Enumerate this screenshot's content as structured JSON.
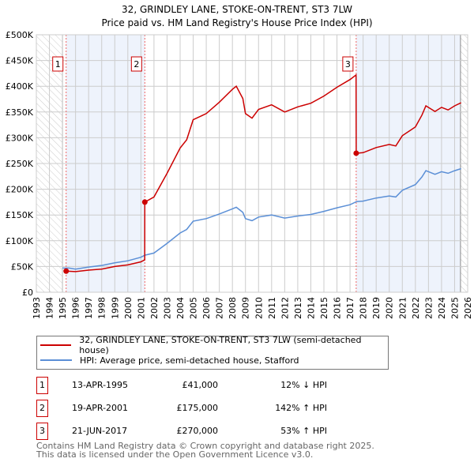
{
  "chart_data": {
    "type": "line",
    "title": "32, GRINDLEY LANE, STOKE-ON-TRENT, ST3 7LW",
    "subtitle": "Price paid vs. HM Land Registry's House Price Index (HPI)",
    "xlim": [
      1993,
      2026
    ],
    "ylim": [
      0,
      500000
    ],
    "x_ticks": [
      "1993",
      "1994",
      "1995",
      "1996",
      "1997",
      "1998",
      "1999",
      "2000",
      "2001",
      "2002",
      "2003",
      "2004",
      "2005",
      "2006",
      "2007",
      "2008",
      "2009",
      "2010",
      "2011",
      "2012",
      "2013",
      "2014",
      "2015",
      "2016",
      "2017",
      "2018",
      "2019",
      "2020",
      "2021",
      "2022",
      "2023",
      "2024",
      "2025",
      "2026"
    ],
    "y_ticks": [
      {
        "v": 0,
        "label": "£0"
      },
      {
        "v": 50000,
        "label": "£50K"
      },
      {
        "v": 100000,
        "label": "£100K"
      },
      {
        "v": 150000,
        "label": "£150K"
      },
      {
        "v": 200000,
        "label": "£200K"
      },
      {
        "v": 250000,
        "label": "£250K"
      },
      {
        "v": 300000,
        "label": "£300K"
      },
      {
        "v": 350000,
        "label": "£350K"
      },
      {
        "v": 400000,
        "label": "£400K"
      },
      {
        "v": 450000,
        "label": "£450K"
      },
      {
        "v": 500000,
        "label": "£500K"
      }
    ],
    "grid": true,
    "legend_position": "below",
    "series": [
      {
        "name": "32, GRINDLEY LANE, STOKE-ON-TRENT, ST3 7LW (semi-detached house)",
        "color": "#cc0000",
        "x": [
          1995.28,
          1996,
          1997,
          1998,
          1999,
          2000,
          2001,
          2001.29,
          2001.3,
          2002,
          2003,
          2004,
          2004.5,
          2005,
          2006,
          2007,
          2008,
          2008.3,
          2008.8,
          2009,
          2009.5,
          2010,
          2011,
          2012,
          2013,
          2014,
          2015,
          2016,
          2017,
          2017.46,
          2017.47,
          2018,
          2019,
          2020,
          2020.5,
          2021,
          2022,
          2022.5,
          2022.8,
          2023.5,
          2024,
          2024.5,
          2025,
          2025.5
        ],
        "y": [
          41000,
          40000,
          43000,
          45000,
          50000,
          53000,
          59000,
          63000,
          175000,
          185000,
          231000,
          280000,
          296000,
          335000,
          347000,
          369000,
          394000,
          400000,
          376000,
          347000,
          338000,
          355000,
          364000,
          350000,
          360000,
          367000,
          381000,
          398000,
          413000,
          422000,
          270000,
          271000,
          281000,
          287000,
          284000,
          304000,
          321000,
          344000,
          362000,
          351000,
          359000,
          354000,
          362000,
          368000
        ]
      },
      {
        "name": "HPI: Average price, semi-detached house, Stafford",
        "color": "#5b8fd6",
        "x": [
          1995.0,
          1995.5,
          1996,
          1997,
          1998,
          1999,
          2000,
          2001,
          2001.3,
          2002,
          2003,
          2004,
          2004.5,
          2005,
          2006,
          2007,
          2008,
          2008.3,
          2008.8,
          2009,
          2009.5,
          2010,
          2011,
          2012,
          2013,
          2014,
          2015,
          2016,
          2017,
          2017.5,
          2018,
          2019,
          2020,
          2020.5,
          2021,
          2022,
          2022.5,
          2022.8,
          2023.5,
          2024,
          2024.5,
          2025,
          2025.5
        ],
        "y": [
          47000,
          47000,
          45000,
          49000,
          52000,
          57000,
          61000,
          68000,
          72000,
          76000,
          95000,
          115000,
          122000,
          138000,
          143000,
          152000,
          162000,
          165000,
          155000,
          143000,
          139000,
          146000,
          150000,
          144000,
          148000,
          151000,
          157000,
          164000,
          170000,
          176000,
          177000,
          183000,
          187000,
          185000,
          198000,
          209000,
          224000,
          236000,
          229000,
          234000,
          231000,
          236000,
          240000
        ]
      }
    ],
    "sales": [
      {
        "n": "1",
        "x": 1995.28,
        "y": 41000
      },
      {
        "n": "2",
        "x": 2001.3,
        "y": 175000
      },
      {
        "n": "3",
        "x": 2017.47,
        "y": 270000
      }
    ],
    "shaded_periods": [
      [
        1995.28,
        2001.3
      ],
      [
        2017.47,
        2025.45
      ]
    ],
    "hatched_periods": [
      [
        1993,
        1995.0
      ],
      [
        2025.45,
        2026
      ]
    ]
  },
  "legend": {
    "property": "32, GRINDLEY LANE, STOKE-ON-TRENT, ST3 7LW (semi-detached house)",
    "hpi": "HPI: Average price, semi-detached house, Stafford"
  },
  "transactions": [
    {
      "num": "1",
      "date": "13-APR-1995",
      "price": "£41,000",
      "hpi": "12% ↓ HPI"
    },
    {
      "num": "2",
      "date": "19-APR-2001",
      "price": "£175,000",
      "hpi": "142% ↑ HPI"
    },
    {
      "num": "3",
      "date": "21-JUN-2017",
      "price": "£270,000",
      "hpi": "53% ↑ HPI"
    }
  ],
  "footer": {
    "line1": "Contains HM Land Registry data © Crown copyright and database right 2025.",
    "line2": "This data is licensed under the Open Government Licence v3.0."
  }
}
